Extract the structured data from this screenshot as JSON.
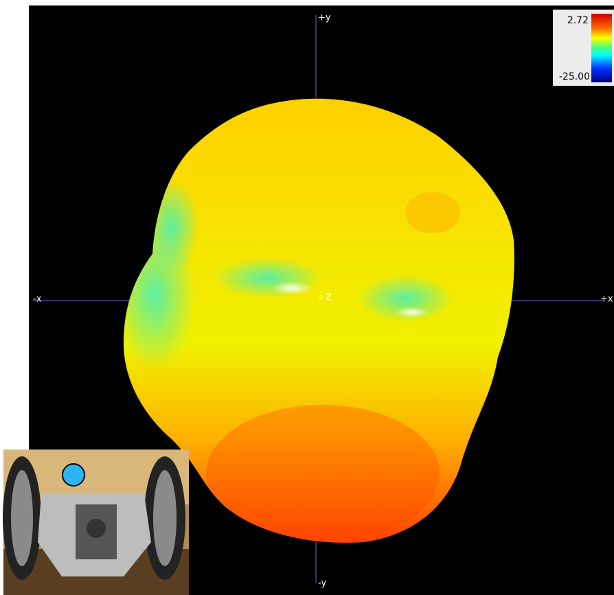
{
  "axes": {
    "plus_y": "+y",
    "minus_y": "-y",
    "minus_x": "-x",
    "plus_x": "+x",
    "plus_z": "+Z"
  },
  "colorbar": {
    "max": "2.72",
    "min": "-25.00"
  }
}
